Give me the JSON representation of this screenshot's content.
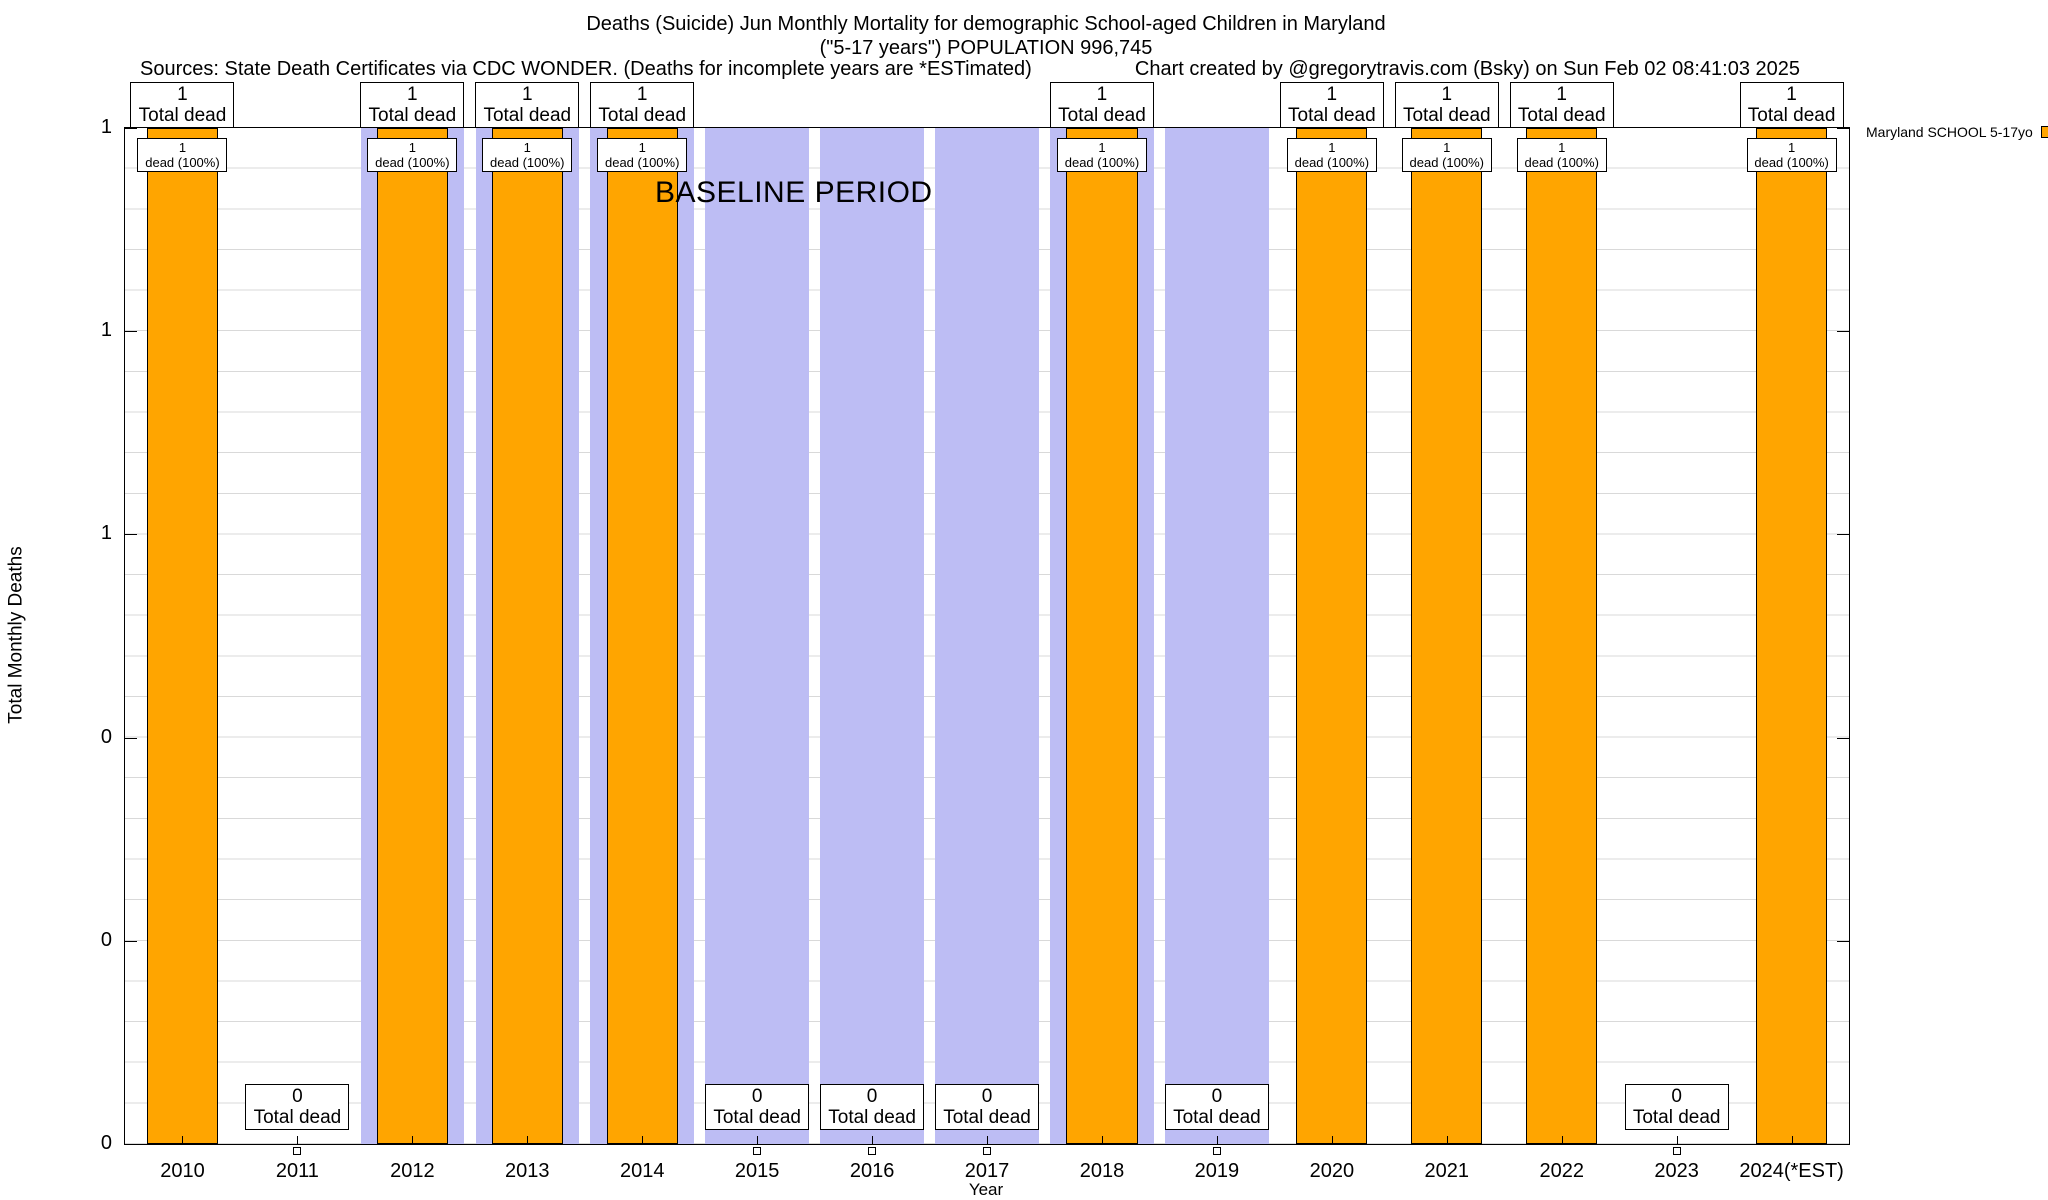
{
  "header": {
    "title_line1": "Deaths (Suicide) Jun Monthly Mortality for demographic School-aged Children in Maryland",
    "title_line2": "(\"5-17 years\") POPULATION 996,745",
    "sources": "Sources: State Death Certificates via CDC WONDER. (Deaths for incomplete years are *ESTimated)",
    "credit": "Chart created by @gregorytravis.com (Bsky) on Sun Feb 02 08:41:03 2025"
  },
  "chart_data": {
    "type": "bar",
    "title": "Deaths (Suicide) Jun Monthly Mortality for demographic School-aged Children in Maryland (\"5-17 years\") POPULATION 996,745",
    "xlabel": "Year",
    "ylabel": "Total Monthly Deaths",
    "ylim": [
      0,
      1
    ],
    "grid": true,
    "ytick_labels": [
      "1",
      "1",
      "1",
      "0",
      "0",
      "0"
    ],
    "categories": [
      "2010",
      "2011",
      "2012",
      "2013",
      "2014",
      "2015",
      "2016",
      "2017",
      "2018",
      "2019",
      "2020",
      "2021",
      "2022",
      "2023",
      "2024(*EST)"
    ],
    "values": [
      1,
      0,
      1,
      1,
      1,
      0,
      0,
      0,
      1,
      0,
      1,
      1,
      1,
      0,
      1
    ],
    "baseline_categories": [
      "2012",
      "2013",
      "2014",
      "2015",
      "2016",
      "2017",
      "2018",
      "2019"
    ],
    "baseline_label": "BASELINE PERIOD",
    "bar_color": "#FFA500",
    "baseline_color": "#BDBDF4",
    "legend": {
      "label": "Maryland SCHOOL 5-17yo",
      "color": "#FFA500",
      "position": "top-right-outside"
    }
  },
  "labels": {
    "total_dead": "Total dead",
    "dead_pct": "dead (100%)"
  }
}
